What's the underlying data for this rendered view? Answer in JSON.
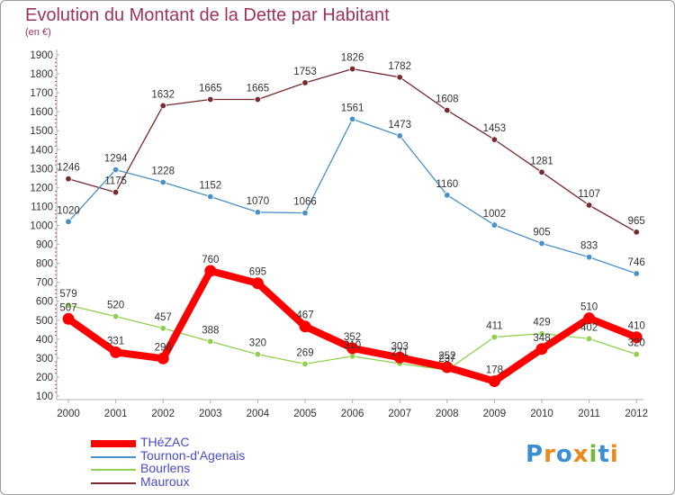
{
  "title": "Evolution du Montant de la Dette par Habitant",
  "subtitle": "(en €)",
  "logo": {
    "letters": [
      {
        "ch": "P",
        "color": "#3a8fd0"
      },
      {
        "ch": "r",
        "color": "#e88a1e"
      },
      {
        "ch": "o",
        "color": "#3a8fd0"
      },
      {
        "ch": "x",
        "color": "#e88a1e"
      },
      {
        "ch": "i",
        "color": "#7ab83a"
      },
      {
        "ch": "t",
        "color": "#3a8fd0"
      },
      {
        "ch": "i",
        "color": "#e88a1e"
      }
    ]
  },
  "chart_data": {
    "type": "line",
    "x": [
      "2000",
      "2001",
      "2002",
      "2003",
      "2004",
      "2005",
      "2006",
      "2007",
      "2008",
      "2009",
      "2010",
      "2011",
      "2012"
    ],
    "ylim": [
      100,
      1900
    ],
    "yticks": [
      100,
      200,
      300,
      400,
      500,
      600,
      700,
      800,
      900,
      1000,
      1100,
      1200,
      1300,
      1400,
      1500,
      1600,
      1700,
      1800,
      1900
    ],
    "grid": false,
    "legend_position": "bottom-left",
    "series": [
      {
        "name": "Mauroux",
        "color": "#7a2830",
        "values": [
          1246,
          1175,
          1632,
          1665,
          1665,
          1753,
          1826,
          1782,
          1608,
          1453,
          1281,
          1107,
          965
        ]
      },
      {
        "name": "Tournon-d'Agenais",
        "color": "#4a90c8",
        "values": [
          1020,
          1294,
          1228,
          1152,
          1070,
          1066,
          1561,
          1473,
          1160,
          1002,
          905,
          833,
          746
        ]
      },
      {
        "name": "Bourlens",
        "color": "#90d050",
        "values": [
          579,
          520,
          457,
          388,
          320,
          269,
          310,
          271,
          237,
          411,
          429,
          402,
          320
        ]
      },
      {
        "name": "THéZAC",
        "color": "#ff0000",
        "values": [
          507,
          331,
          298,
          760,
          695,
          467,
          352,
          303,
          252,
          178,
          348,
          510,
          410
        ]
      }
    ],
    "data_labels": {
      "Mauroux": [
        "1246",
        "1175",
        "1632",
        "1665",
        "1665",
        "1753",
        "1826",
        "1782",
        "1608",
        "1453",
        "1281",
        "1107",
        "965"
      ],
      "Tournon-d'Agenais": [
        "1020",
        "1294",
        "1228",
        "1152",
        "1070",
        "1066",
        "1561",
        "1473",
        "1160",
        "1002",
        "905",
        "833",
        "746"
      ],
      "Bourlens": [
        "579",
        "520",
        "457",
        "388",
        "320",
        "269",
        "310",
        "271",
        "237",
        "411",
        "429",
        "402",
        "320"
      ],
      "THéZAC": [
        "507",
        "331",
        "298",
        "760",
        "695",
        "467",
        "352",
        "303",
        "252",
        "178",
        "348",
        "510",
        "410"
      ]
    },
    "legend_order": [
      "THéZAC",
      "Tournon-d'Agenais",
      "Bourlens",
      "Mauroux"
    ]
  }
}
